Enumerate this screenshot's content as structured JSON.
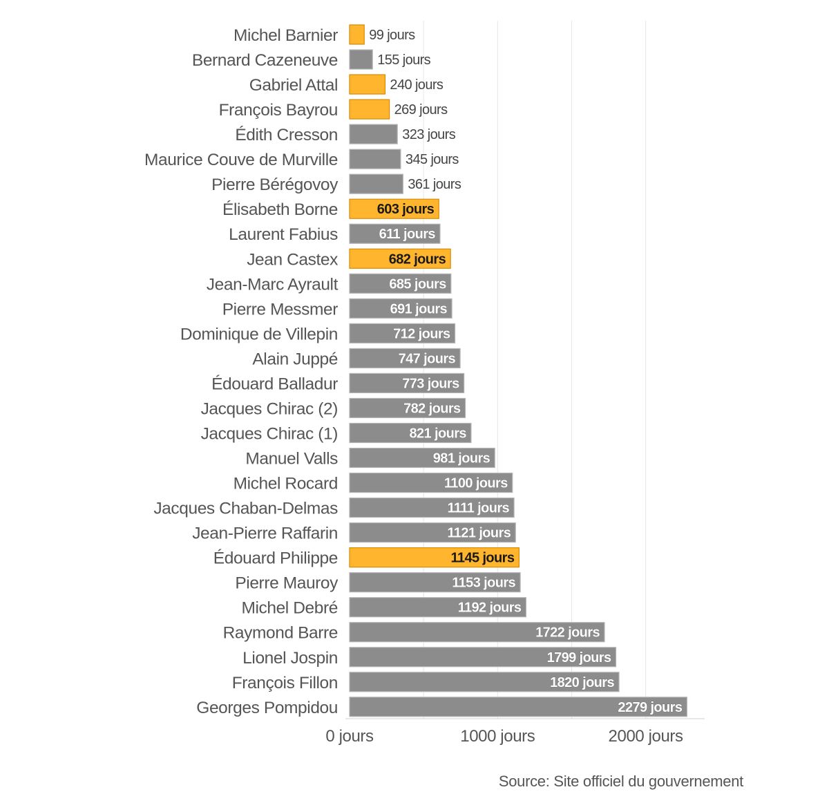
{
  "chart_data": {
    "type": "bar",
    "orientation": "horizontal",
    "unit_suffix": "jours",
    "categories": [
      "Michel Barnier",
      "Bernard Cazeneuve",
      "Gabriel Attal",
      "François Bayrou",
      "Édith Cresson",
      "Maurice Couve de Murville",
      "Pierre Bérégovoy",
      "Élisabeth Borne",
      "Laurent Fabius",
      "Jean Castex",
      "Jean-Marc Ayrault",
      "Pierre Messmer",
      "Dominique de Villepin",
      "Alain Juppé",
      "Édouard Balladur",
      "Jacques Chirac (2)",
      "Jacques Chirac (1)",
      "Manuel Valls",
      "Michel Rocard",
      "Jacques Chaban-Delmas",
      "Jean-Pierre Raffarin",
      "Édouard Philippe",
      "Pierre Mauroy",
      "Michel Debré",
      "Raymond Barre",
      "Lionel Jospin",
      "François Fillon",
      "Georges Pompidou"
    ],
    "values": [
      99,
      155,
      240,
      269,
      323,
      345,
      361,
      603,
      611,
      682,
      685,
      691,
      712,
      747,
      773,
      782,
      821,
      981,
      1100,
      1111,
      1121,
      1145,
      1153,
      1192,
      1722,
      1799,
      1820,
      2279
    ],
    "data_labels": [
      "99 jours",
      "155 jours",
      "240 jours",
      "269 jours",
      "323 jours",
      "345 jours",
      "361 jours",
      "603 jours",
      "611 jours",
      "682 jours",
      "685 jours",
      "691 jours",
      "712 jours",
      "747 jours",
      "773 jours",
      "782 jours",
      "821 jours",
      "981 jours",
      "1100 jours",
      "1111 jours",
      "1121 jours",
      "1145 jours",
      "1153 jours",
      "1192 jours",
      "1722 jours",
      "1799 jours",
      "1820 jours",
      "2279 jours"
    ],
    "highlighted": [
      true,
      false,
      true,
      true,
      false,
      false,
      false,
      true,
      false,
      true,
      false,
      false,
      false,
      false,
      false,
      false,
      false,
      false,
      false,
      false,
      false,
      true,
      false,
      false,
      false,
      false,
      false,
      false
    ],
    "colors": {
      "default": "#8c8c8c",
      "highlight": "#ffb52e",
      "default_border": "#b5b5b5",
      "highlight_border": "#d98a00"
    },
    "xlim": [
      0,
      2400
    ],
    "xticks": [
      0,
      1000,
      2000
    ],
    "xtick_labels": [
      "0 jours",
      "1000 jours",
      "2000 jours"
    ],
    "grid": true,
    "title": "",
    "xlabel": "",
    "ylabel": ""
  },
  "source": "Source: Site officiel du gouvernement"
}
